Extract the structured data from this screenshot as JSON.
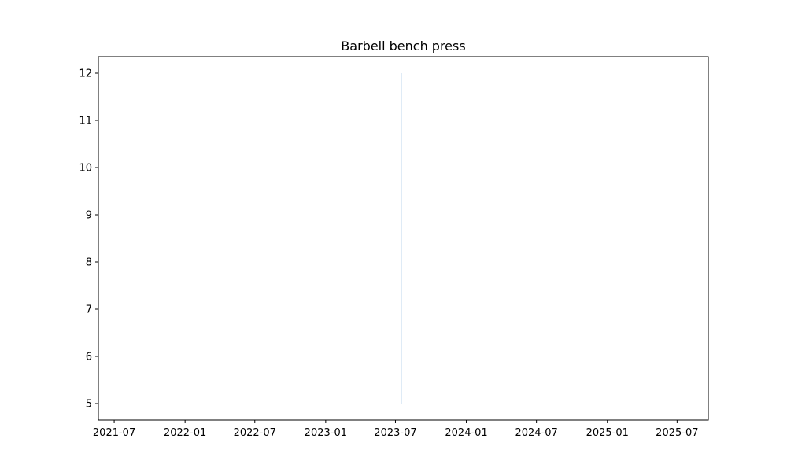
{
  "chart_data": {
    "type": "line",
    "title": "Barbell bench press",
    "xlabel": "",
    "ylabel": "",
    "x_ticks": [
      "2021-07",
      "2022-01",
      "2022-07",
      "2023-01",
      "2023-07",
      "2024-01",
      "2024-07",
      "2025-01",
      "2025-07"
    ],
    "y_ticks": [
      5,
      6,
      7,
      8,
      9,
      10,
      11,
      12
    ],
    "xlim": [
      "2021-05-21",
      "2025-09-20"
    ],
    "ylim": [
      4.65,
      12.35
    ],
    "grid": false,
    "series": [
      {
        "color": "#c6dbef",
        "points": [
          {
            "x": "2023-07-16",
            "y": 5
          },
          {
            "x": "2023-07-16",
            "y": 12
          }
        ]
      }
    ]
  }
}
